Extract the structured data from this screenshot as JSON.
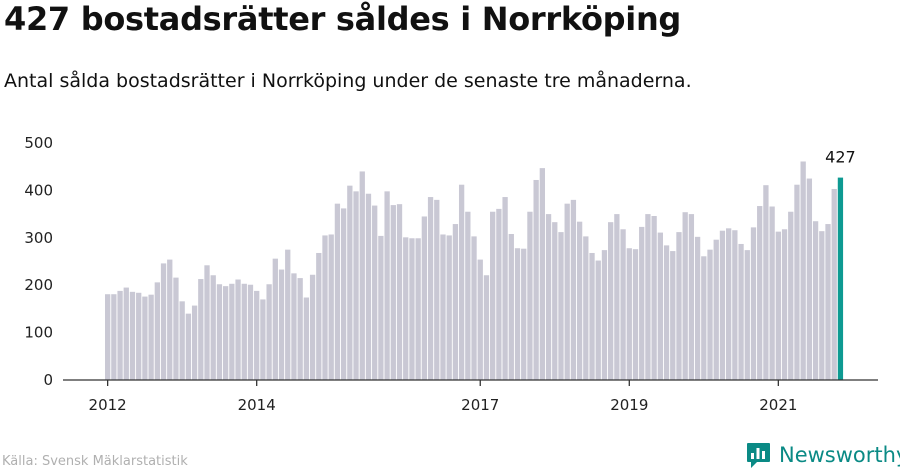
{
  "title": "427 bostadsrätter såldes i Norrköping",
  "subtitle": "Antal sålda bostadsrätter i Norrköping under de senaste tre månaderna.",
  "source": "Källa: Svensk Mäklarstatistik",
  "brand": {
    "name": "Newsworthy",
    "color": "#0a8a85"
  },
  "colors": {
    "bar": "#c9c8d4",
    "highlight": "#0e9a92",
    "axis": "#333333"
  },
  "chart_data": {
    "type": "bar",
    "title": "427 bostadsrätter såldes i Norrköping",
    "xlabel": "",
    "ylabel": "",
    "ylim": [
      0,
      500
    ],
    "yticks": [
      0,
      100,
      200,
      300,
      400,
      500
    ],
    "xtick_labels": [
      {
        "label": "2012",
        "index": 0
      },
      {
        "label": "2014",
        "index": 24
      },
      {
        "label": "2017",
        "index": 60
      },
      {
        "label": "2019",
        "index": 84
      },
      {
        "label": "2021",
        "index": 108
      }
    ],
    "grid": false,
    "legend": "none",
    "highlight_label": "427",
    "values": [
      181,
      181,
      188,
      195,
      186,
      184,
      176,
      180,
      206,
      246,
      254,
      216,
      166,
      140,
      157,
      213,
      242,
      221,
      202,
      198,
      203,
      212,
      203,
      201,
      188,
      170,
      202,
      256,
      233,
      275,
      225,
      215,
      174,
      222,
      268,
      305,
      307,
      372,
      362,
      410,
      398,
      440,
      393,
      368,
      304,
      398,
      369,
      371,
      301,
      299,
      299,
      345,
      386,
      380,
      307,
      305,
      329,
      412,
      355,
      303,
      254,
      221,
      355,
      361,
      386,
      308,
      278,
      277,
      355,
      422,
      447,
      350,
      333,
      312,
      372,
      380,
      334,
      303,
      268,
      252,
      274,
      333,
      350,
      318,
      278,
      276,
      323,
      350,
      346,
      311,
      284,
      272,
      312,
      354,
      350,
      302,
      261,
      275,
      296,
      315,
      320,
      316,
      287,
      274,
      322,
      367,
      411,
      366,
      313,
      318,
      355,
      412,
      461,
      425,
      335,
      314,
      329,
      403,
      427
    ]
  }
}
